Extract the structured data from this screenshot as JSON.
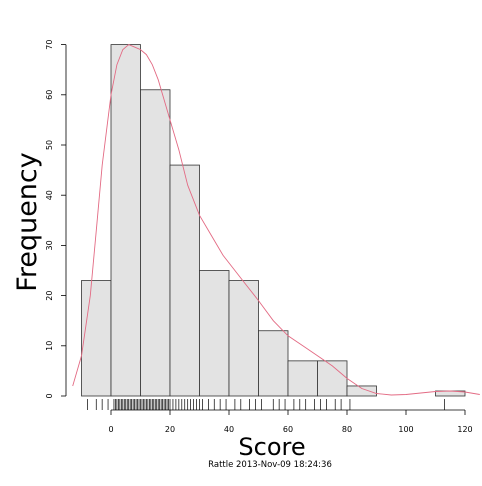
{
  "chart_data": {
    "type": "histogram",
    "xlabel": "Score",
    "ylabel": "Frequency",
    "footer": "Rattle 2013-Nov-09 18:24:36",
    "xlim": [
      -13,
      125
    ],
    "ylim": [
      0,
      70
    ],
    "x_ticks": [
      0,
      20,
      40,
      60,
      80,
      100,
      120
    ],
    "y_ticks": [
      0,
      10,
      20,
      30,
      40,
      50,
      60,
      70
    ],
    "bins": [
      {
        "from": -10,
        "to": 0,
        "count": 23
      },
      {
        "from": 0,
        "to": 10,
        "count": 70
      },
      {
        "from": 10,
        "to": 20,
        "count": 61
      },
      {
        "from": 20,
        "to": 30,
        "count": 46
      },
      {
        "from": 30,
        "to": 40,
        "count": 25
      },
      {
        "from": 40,
        "to": 50,
        "count": 23
      },
      {
        "from": 50,
        "to": 60,
        "count": 13
      },
      {
        "from": 60,
        "to": 70,
        "count": 7
      },
      {
        "from": 70,
        "to": 80,
        "count": 7
      },
      {
        "from": 80,
        "to": 90,
        "count": 2
      },
      {
        "from": 90,
        "to": 100,
        "count": 0
      },
      {
        "from": 100,
        "to": 110,
        "count": 0
      },
      {
        "from": 110,
        "to": 120,
        "count": 1
      }
    ],
    "density_curve": {
      "x": [
        -13,
        -10,
        -7,
        -5,
        -3,
        0,
        2,
        4,
        6,
        8,
        10,
        12,
        14,
        16,
        18,
        20,
        23,
        26,
        30,
        34,
        38,
        42,
        46,
        50,
        55,
        60,
        65,
        70,
        75,
        80,
        85,
        90,
        95,
        100,
        105,
        110,
        115,
        120,
        125
      ],
      "y": [
        2,
        8,
        20,
        33,
        46,
        60,
        66,
        69,
        70,
        69.5,
        69,
        68,
        66,
        63,
        59,
        55,
        49,
        42,
        36,
        32,
        28,
        25,
        22,
        19,
        15,
        12,
        10,
        8,
        6,
        3.5,
        1.5,
        0.5,
        0.2,
        0.3,
        0.6,
        0.9,
        1.0,
        0.8,
        0.3
      ]
    },
    "rug": [
      -8,
      -5,
      -3,
      -1,
      1,
      1.5,
      2,
      2.5,
      3,
      3.5,
      4,
      4.5,
      5,
      5.5,
      6,
      6.5,
      7,
      7.5,
      8,
      8.5,
      9,
      9.5,
      10,
      10.5,
      11,
      11.5,
      12,
      12.5,
      13,
      13.5,
      14,
      14.5,
      15,
      15.5,
      16,
      16.5,
      17,
      17.5,
      18,
      18.5,
      19,
      19.5,
      20,
      21,
      22,
      23,
      24,
      25,
      26,
      27,
      28,
      29,
      30,
      31,
      33,
      35,
      37,
      39,
      42,
      44,
      47,
      49,
      51,
      55,
      57,
      59,
      62,
      64,
      66,
      69,
      71,
      73,
      76,
      78,
      81,
      113
    ],
    "grid": false,
    "colors": {
      "bar_fill": "#e3e3e3",
      "bar_stroke": "#333333",
      "curve": "#e36b84",
      "axis": "#000000"
    }
  }
}
